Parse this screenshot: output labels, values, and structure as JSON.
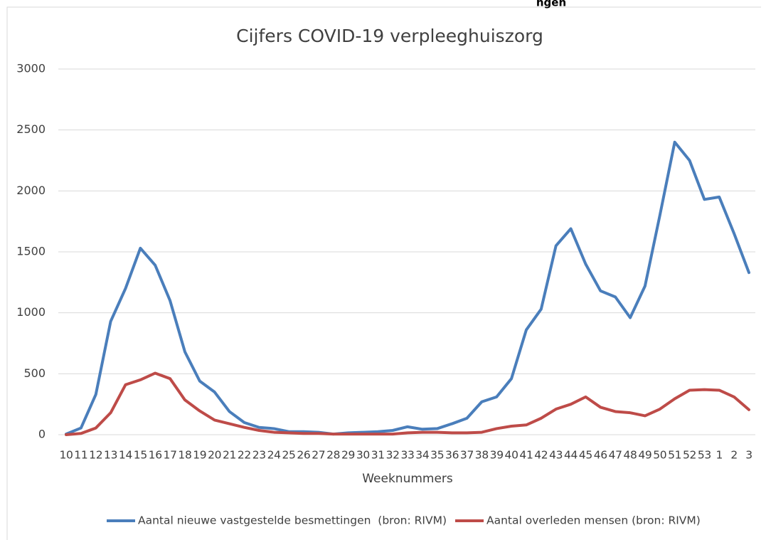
{
  "chart_data": {
    "type": "line",
    "title": "Cijfers COVID-19 verpleeghuiszorg",
    "annotations": [
      "ngen"
    ],
    "x_label": "Weeknummers",
    "categories": [
      "10",
      "11",
      "12",
      "13",
      "14",
      "15",
      "16",
      "17",
      "18",
      "19",
      "20",
      "21",
      "22",
      "23",
      "24",
      "25",
      "26",
      "27",
      "28",
      "29",
      "30",
      "31",
      "32",
      "33",
      "34",
      "35",
      "36",
      "37",
      "38",
      "39",
      "40",
      "41",
      "42",
      "43",
      "44",
      "45",
      "46",
      "47",
      "48",
      "49",
      "50",
      "51",
      "52",
      "53",
      "1",
      "2",
      "3"
    ],
    "series": [
      {
        "name": "Aantal nieuwe vastgestelde besmettingen  (bron: RIVM)",
        "color": "#4a7ebb",
        "values": [
          5,
          55,
          330,
          930,
          1200,
          1530,
          1390,
          1100,
          680,
          440,
          350,
          190,
          100,
          60,
          50,
          25,
          25,
          20,
          5,
          15,
          20,
          25,
          35,
          65,
          45,
          50,
          90,
          135,
          270,
          310,
          460,
          860,
          1030,
          1550,
          1690,
          1400,
          1180,
          1130,
          960,
          1220,
          1800,
          2400,
          2250,
          1930,
          1950,
          1650,
          1330
        ]
      },
      {
        "name": "Aantal overleden mensen (bron: RIVM)",
        "color": "#be4b48",
        "values": [
          0,
          10,
          55,
          180,
          410,
          450,
          505,
          460,
          285,
          195,
          120,
          90,
          60,
          35,
          20,
          15,
          10,
          10,
          5,
          5,
          5,
          5,
          5,
          15,
          20,
          20,
          15,
          15,
          20,
          50,
          70,
          80,
          135,
          210,
          250,
          310,
          225,
          190,
          180,
          155,
          210,
          295,
          365,
          370,
          365,
          310,
          205
        ]
      }
    ],
    "ylim": [
      0,
      3000
    ],
    "yticks": [
      0,
      500,
      1000,
      1500,
      2000,
      2500,
      3000
    ],
    "grid": true,
    "legend": "bottom"
  }
}
